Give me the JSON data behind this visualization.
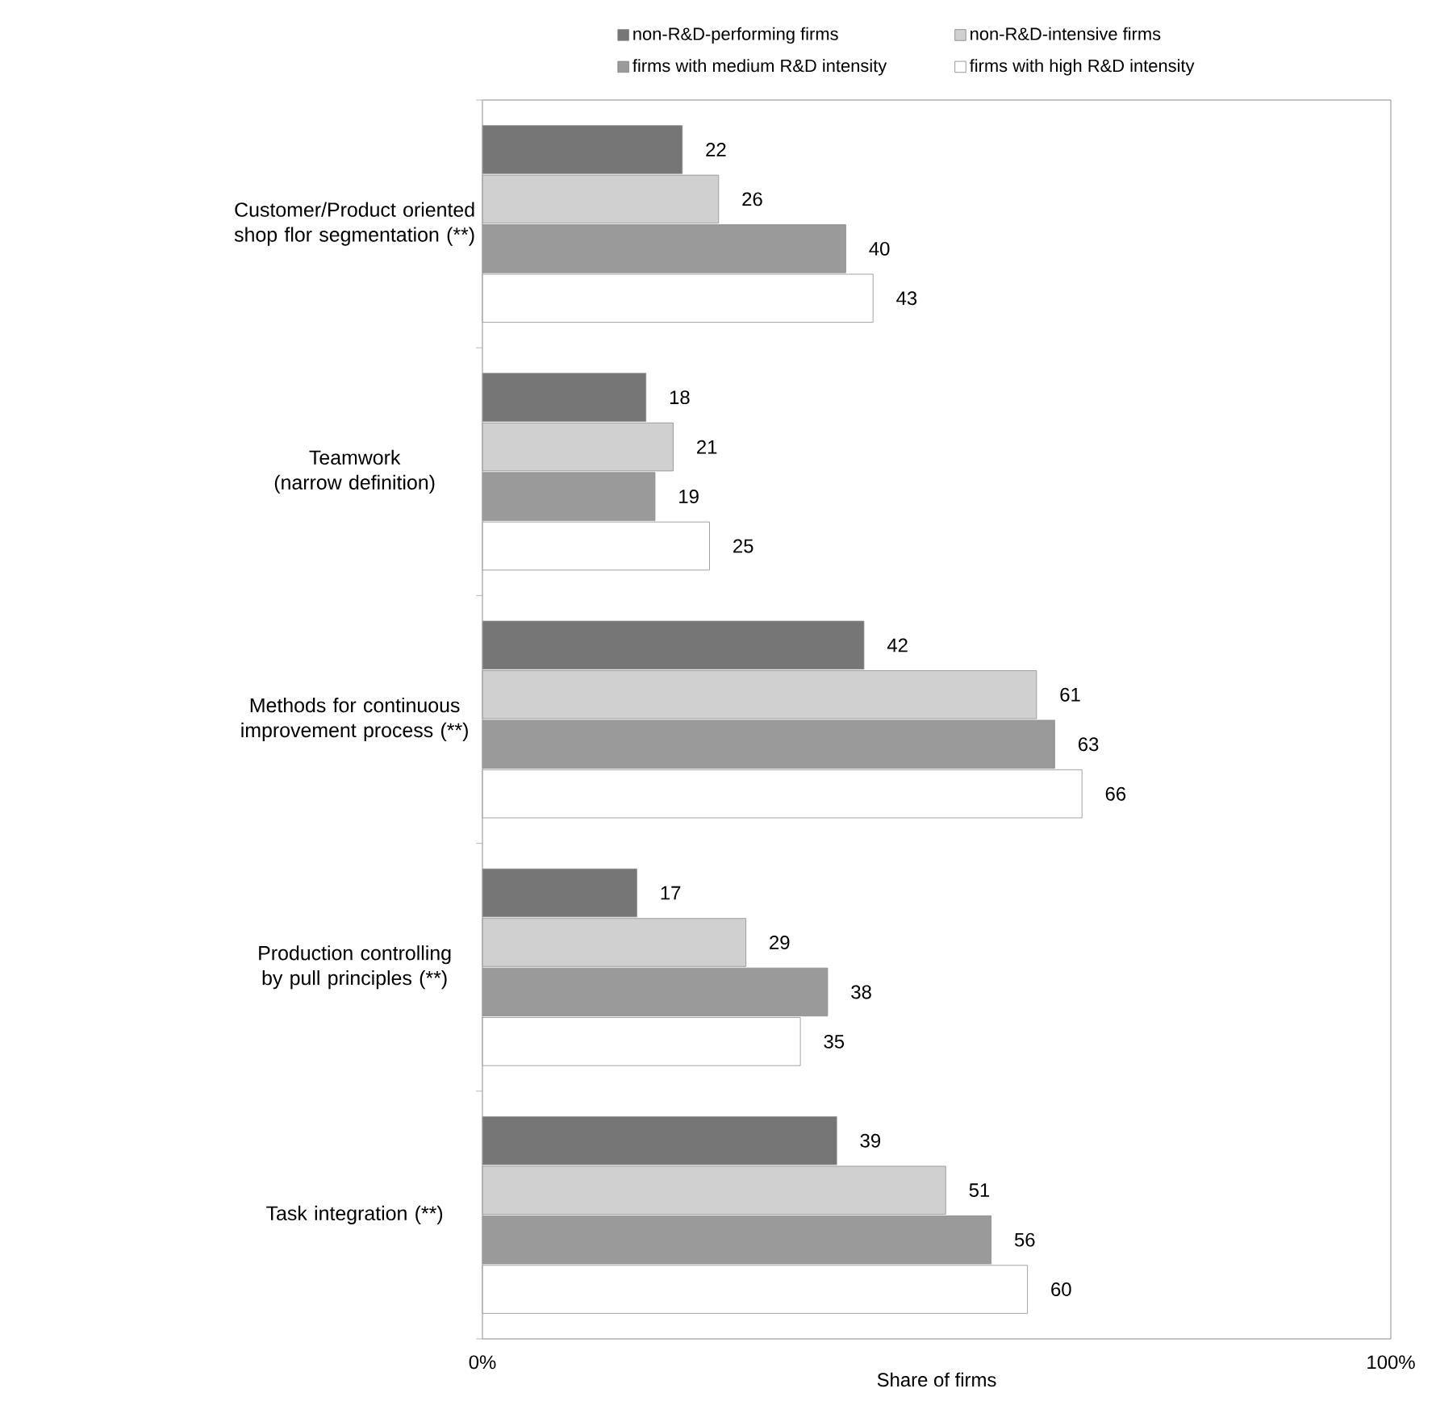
{
  "chart_data": {
    "type": "bar",
    "orientation": "horizontal",
    "xlabel": "Share of firms",
    "categories": [
      "Customer/Product oriented shop flor segmentation (**)",
      "Teamwork (narrow definition)",
      "Methods for continuous improvement process (**)",
      "Production controlling by pull principles (**)",
      "Task integration (**)"
    ],
    "series": [
      {
        "name": "non-R&D-performing firms",
        "color": "#767676",
        "values": [
          22,
          18,
          42,
          17,
          39
        ]
      },
      {
        "name": "non-R&D-intensive firms",
        "color": "#d0d0d0",
        "values": [
          26,
          21,
          61,
          29,
          51
        ]
      },
      {
        "name": "firms with medium R&D intensity",
        "color": "#9a9a9a",
        "values": [
          40,
          19,
          63,
          38,
          56
        ]
      },
      {
        "name": "firms with high R&D intensity",
        "color": "#ffffff",
        "values": [
          43,
          25,
          66,
          35,
          60
        ]
      }
    ],
    "xlim": [
      0,
      100
    ],
    "xticks": [
      {
        "value": 0,
        "label": "0%"
      },
      {
        "value": 100,
        "label": "100%"
      }
    ],
    "data_labels": true,
    "legend": "top",
    "grid": false
  }
}
